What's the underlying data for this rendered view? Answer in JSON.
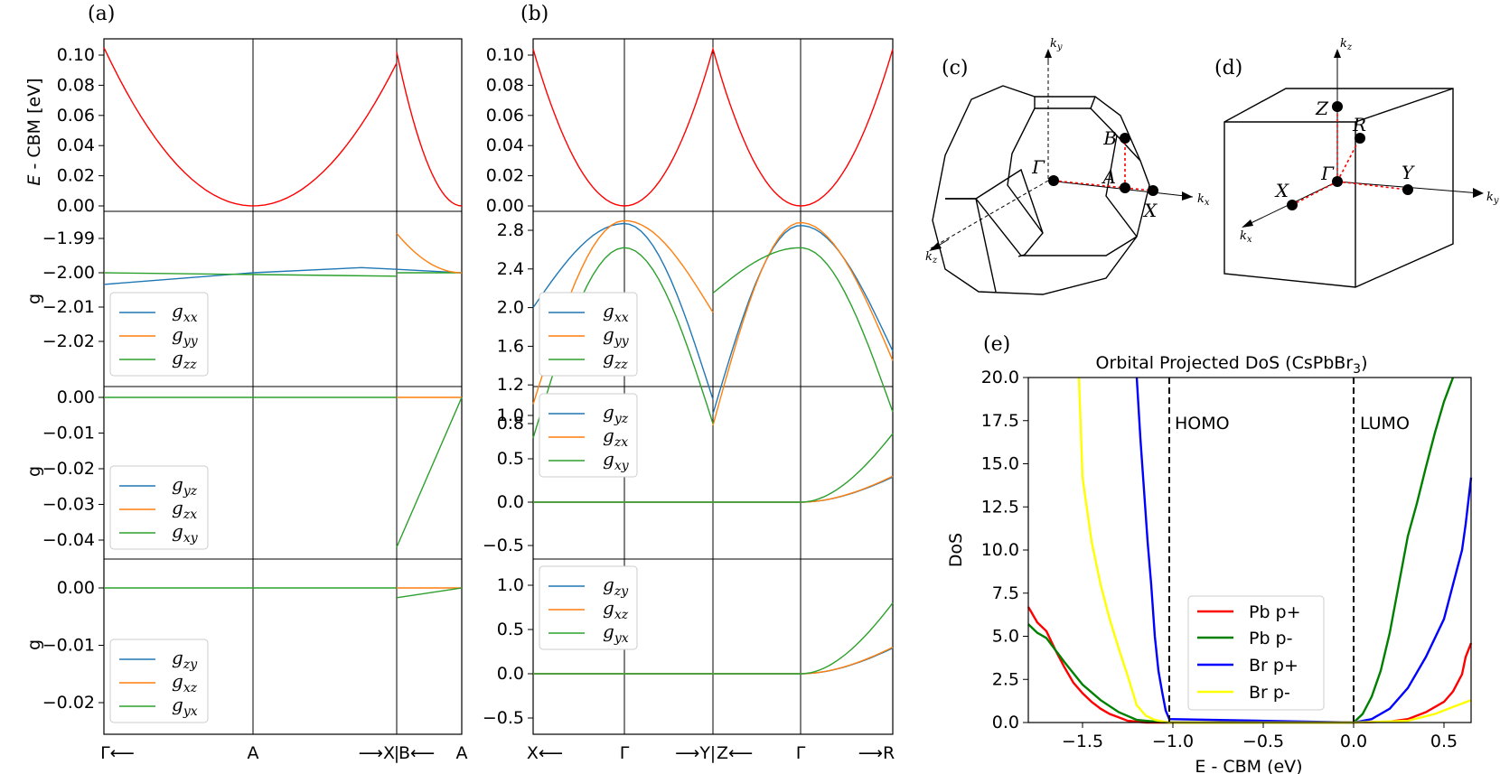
{
  "panels": {
    "a": "(a)",
    "b": "(b)",
    "c": "(c)",
    "d": "(d)",
    "e": "(e)"
  },
  "colors": {
    "red": "#ff0000",
    "c1": "#1f77b4",
    "c2": "#ff7f0e",
    "c3": "#2ca02c",
    "dos_red": "#ff0000",
    "dos_green": "#008000",
    "dos_blue": "#0000ff",
    "dos_yellow": "#ffff00"
  },
  "panel_a": {
    "energy_ylabel_var": "E",
    "energy_ylabel_rest": " - CBM [eV]",
    "g_ylabel": "g",
    "energy_ticks": [
      "0.10",
      "0.08",
      "0.06",
      "0.04",
      "0.02",
      "0.00"
    ],
    "diag_ticks": [
      "−1.99",
      "−2.00",
      "−2.01",
      "−2.02"
    ],
    "offdiag_ticks": [
      "0.00",
      "−0.01",
      "−0.02",
      "−0.03",
      "−0.04"
    ],
    "offdiag2_ticks": [
      "0.00",
      "−0.01",
      "−0.02"
    ],
    "xticks": [
      "Γ⟵",
      "A",
      "⟶X",
      "B⟵",
      "A"
    ],
    "legend_diag": [
      "g",
      "g",
      "g"
    ],
    "legend_diag_sub": [
      "xx",
      "yy",
      "zz"
    ],
    "legend_off": [
      "g",
      "g",
      "g"
    ],
    "legend_off_sub": [
      "yz",
      "zx",
      "xy"
    ],
    "legend_off2": [
      "g",
      "g",
      "g"
    ],
    "legend_off2_sub": [
      "zy",
      "xz",
      "yx"
    ]
  },
  "panel_b": {
    "energy_ticks": [
      "0.10",
      "0.08",
      "0.06",
      "0.04",
      "0.02",
      "0.00"
    ],
    "diag_ticks": [
      "2.8",
      "2.4",
      "2.0",
      "1.6",
      "1.2",
      "0.8"
    ],
    "off_ticks": [
      "1.0",
      "0.5",
      "0.0",
      "−0.5"
    ],
    "off2_ticks": [
      "1.0",
      "0.5",
      "0.0",
      "−0.5"
    ],
    "xticks": [
      "X⟵",
      "Γ",
      "⟶Y",
      "Z⟵",
      "Γ",
      "⟶R"
    ],
    "legend_diag": [
      "g",
      "g",
      "g"
    ],
    "legend_diag_sub": [
      "xx",
      "yy",
      "zz"
    ],
    "legend_off": [
      "g",
      "g",
      "g"
    ],
    "legend_off_sub": [
      "yz",
      "zx",
      "xy"
    ],
    "legend_off2": [
      "g",
      "g",
      "g"
    ],
    "legend_off2_sub": [
      "zy",
      "xz",
      "yx"
    ]
  },
  "panel_c": {
    "ky": "k",
    "ky_sub": "y",
    "kx": "k",
    "kx_sub": "x",
    "kz": "k",
    "kz_sub": "z",
    "pts": [
      "Γ",
      "B",
      "A",
      "X"
    ]
  },
  "panel_d": {
    "kz": "k",
    "kz_sub": "z",
    "ky": "k",
    "ky_sub": "y",
    "kx": "k",
    "kx_sub": "x",
    "pts": [
      "Z",
      "R",
      "Γ",
      "X",
      "Y"
    ]
  },
  "chart_data": [
    {
      "type": "line",
      "title": "",
      "panel": "(a) band energy",
      "ylabel": "E - CBM [eV]",
      "ylim": [
        0,
        0.105
      ],
      "segments": [
        "Γ→A→X",
        "B→A"
      ],
      "series": [
        {
          "name": "",
          "color": "#ff0000",
          "points": [
            [
              0,
              0.105
            ],
            [
              0.5,
              0.0
            ],
            [
              1.0,
              0.102
            ],
            [
              1.5,
              0.0
            ]
          ]
        }
      ]
    },
    {
      "type": "line",
      "panel": "(a) g diagonal",
      "ylabel": "g",
      "ylim": [
        -2.028,
        -1.987
      ],
      "series": [
        {
          "name": "gxx",
          "values": [
            -2.003,
            -2.0,
            -1.998,
            -2.0
          ]
        },
        {
          "name": "gyy",
          "values": [
            -2.0,
            -2.0,
            -1.988,
            -2.0
          ]
        },
        {
          "name": "gzz",
          "values": [
            -2.0,
            -2.0,
            -2.001,
            -2.0
          ]
        }
      ]
    },
    {
      "type": "line",
      "panel": "(a) g off-diagonal 1",
      "ylabel": "g",
      "ylim": [
        -0.048,
        0.003
      ],
      "series": [
        {
          "name": "gyz",
          "values": [
            0,
            0,
            0,
            0
          ]
        },
        {
          "name": "gzx",
          "values": [
            0,
            0,
            0,
            0
          ]
        },
        {
          "name": "gxy",
          "values": [
            0,
            0,
            -0.042,
            0
          ]
        }
      ]
    },
    {
      "type": "line",
      "panel": "(a) g off-diagonal 2",
      "ylabel": "g",
      "ylim": [
        -0.025,
        0.003
      ],
      "series": [
        {
          "name": "gzy",
          "values": [
            0,
            0,
            0,
            0
          ]
        },
        {
          "name": "gxz",
          "values": [
            0,
            0,
            0,
            0
          ]
        },
        {
          "name": "gyx",
          "values": [
            0,
            0,
            -0.0017,
            0
          ]
        }
      ]
    },
    {
      "type": "line",
      "panel": "(b) band energy",
      "ylim": [
        0,
        0.105
      ],
      "categories": [
        "X",
        "Γ",
        "Y|Z",
        "Γ",
        "R"
      ],
      "series": [
        {
          "name": "",
          "values": [
            0.105,
            0.0,
            0.104,
            0.0,
            0.104
          ]
        }
      ]
    },
    {
      "type": "line",
      "panel": "(b) g diagonal",
      "ylim": [
        0.6,
        2.95
      ],
      "categories": [
        "X",
        "Γ",
        "Y|Z",
        "Γ",
        "R"
      ],
      "series": [
        {
          "name": "gxx",
          "values": [
            2.0,
            2.87,
            1.05,
            2.85,
            1.55
          ]
        },
        {
          "name": "gyy",
          "values": [
            1.0,
            2.9,
            1.95,
            2.88,
            1.45
          ]
        },
        {
          "name": "gzz",
          "values": [
            0.65,
            2.62,
            0.8,
            2.62,
            0.92
          ]
        }
      ]
    },
    {
      "type": "line",
      "panel": "(b) g off-diagonal 1",
      "ylim": [
        -0.6,
        1.15
      ],
      "categories": [
        "X",
        "Γ",
        "Y|Z",
        "Γ",
        "R"
      ],
      "series": [
        {
          "name": "gyz",
          "values": [
            0,
            0,
            0,
            0,
            0.29
          ]
        },
        {
          "name": "gzx",
          "values": [
            0,
            0,
            0,
            0,
            0.3
          ]
        },
        {
          "name": "gxy",
          "values": [
            0,
            0,
            0,
            0,
            0.79
          ]
        }
      ]
    },
    {
      "type": "line",
      "panel": "(b) g off-diagonal 2",
      "ylim": [
        -0.6,
        1.15
      ],
      "categories": [
        "X",
        "Γ",
        "Y|Z",
        "Γ",
        "R"
      ],
      "series": [
        {
          "name": "gzy",
          "values": [
            0,
            0,
            0,
            0,
            0.29
          ]
        },
        {
          "name": "gxz",
          "values": [
            0,
            0,
            0,
            0,
            0.3
          ]
        },
        {
          "name": "gyx",
          "values": [
            0,
            0,
            0,
            0,
            0.8
          ]
        }
      ]
    },
    {
      "type": "line",
      "panel": "(e)",
      "title": "Orbital Projected DoS (CsPbBr",
      "title_sub": "3",
      "title_end": ")",
      "xlabel": "E - CBM (eV)",
      "ylabel": "DoS",
      "xlim": [
        -1.8,
        0.65
      ],
      "ylim": [
        0,
        20
      ],
      "xticks": [
        "−1.5",
        "−1.0",
        "−0.5",
        "0.0",
        "0.5"
      ],
      "xtick_vals": [
        -1.5,
        -1.0,
        -0.5,
        0.0,
        0.5
      ],
      "yticks": [
        "0.0",
        "2.5",
        "5.0",
        "7.5",
        "10.0",
        "12.5",
        "15.0",
        "17.5",
        "20.0"
      ],
      "ytick_vals": [
        0,
        2.5,
        5,
        7.5,
        10,
        12.5,
        15,
        17.5,
        20
      ],
      "vlines": [
        -1.02,
        0.0
      ],
      "annotations": [
        "HOMO",
        "LUMO"
      ],
      "series": [
        {
          "name": "Pb p+",
          "color": "#ff0000",
          "x": [
            -1.8,
            -1.75,
            -1.7,
            -1.65,
            -1.6,
            -1.55,
            -1.5,
            -1.45,
            -1.4,
            -1.35,
            -1.3,
            -1.25,
            -1.2,
            -1.15,
            -1.1,
            -1.05,
            -1.02,
            0.0,
            0.2,
            0.3,
            0.4,
            0.5,
            0.55,
            0.6,
            0.62,
            0.65
          ],
          "y": [
            6.7,
            5.8,
            5.3,
            4.2,
            3.2,
            2.3,
            1.7,
            1.2,
            0.8,
            0.5,
            0.3,
            0.1,
            0.05,
            0,
            0,
            0,
            0,
            0,
            0.05,
            0.2,
            0.6,
            1.2,
            1.8,
            2.8,
            3.8,
            4.6
          ]
        },
        {
          "name": "Pb p-",
          "color": "#008000",
          "x": [
            -1.8,
            -1.75,
            -1.7,
            -1.6,
            -1.5,
            -1.4,
            -1.3,
            -1.2,
            -1.1,
            -1.02,
            0.0,
            0.05,
            0.1,
            0.15,
            0.2,
            0.25,
            0.3,
            0.35,
            0.4,
            0.45,
            0.5,
            0.55
          ],
          "y": [
            5.7,
            5.2,
            4.9,
            3.5,
            2.2,
            1.3,
            0.6,
            0.15,
            0.05,
            0,
            0,
            0.5,
            1.5,
            3.0,
            5.2,
            8.0,
            10.8,
            12.7,
            14.8,
            16.8,
            18.6,
            20
          ]
        },
        {
          "name": "Br p+",
          "color": "#0000ff",
          "x": [
            -1.2,
            -1.18,
            -1.16,
            -1.14,
            -1.12,
            -1.1,
            -1.08,
            -1.06,
            -1.04,
            -1.02,
            0.0,
            0.1,
            0.2,
            0.3,
            0.4,
            0.5,
            0.55,
            0.6,
            0.62,
            0.65
          ],
          "y": [
            20,
            16.5,
            13.5,
            10.5,
            8.0,
            5.0,
            3.0,
            1.8,
            0.7,
            0.2,
            0,
            0.2,
            0.8,
            2.0,
            3.8,
            6.0,
            8.0,
            10.0,
            11.5,
            14.2
          ]
        },
        {
          "name": "Br p-",
          "color": "#ffff00",
          "x": [
            -1.52,
            -1.5,
            -1.45,
            -1.4,
            -1.35,
            -1.3,
            -1.25,
            -1.2,
            -1.15,
            -1.1,
            -1.05,
            -1.02,
            0.0,
            0.3,
            0.45,
            0.55,
            0.65
          ],
          "y": [
            20,
            14.2,
            10.5,
            8.0,
            6.0,
            4.3,
            2.7,
            1.0,
            0.4,
            0.15,
            0.05,
            0,
            0,
            0.1,
            0.5,
            0.9,
            1.3
          ]
        }
      ],
      "legend": [
        "Pb p+",
        "Pb p-",
        "Br p+",
        "Br p-"
      ]
    }
  ]
}
